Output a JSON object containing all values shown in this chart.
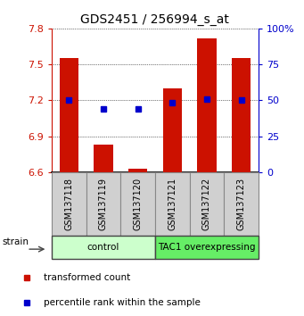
{
  "title": "GDS2451 / 256994_s_at",
  "samples": [
    "GSM137118",
    "GSM137119",
    "GSM137120",
    "GSM137121",
    "GSM137122",
    "GSM137123"
  ],
  "red_bars": [
    7.55,
    6.83,
    6.63,
    7.3,
    7.72,
    7.55
  ],
  "blue_squares": [
    7.2,
    7.13,
    7.13,
    7.18,
    7.21,
    7.2
  ],
  "ylim": [
    6.6,
    7.8
  ],
  "yticks_left": [
    6.6,
    6.9,
    7.2,
    7.5,
    7.8
  ],
  "yticks_right": [
    0,
    25,
    50,
    75,
    100
  ],
  "yticks_right_labels": [
    "0",
    "25",
    "50",
    "75",
    "100%"
  ],
  "bar_bottom": 6.6,
  "bar_color": "#cc1100",
  "square_color": "#0000cc",
  "group_labels": [
    "control",
    "TAC1 overexpressing"
  ],
  "group_ranges": [
    [
      0,
      2
    ],
    [
      3,
      5
    ]
  ],
  "group_colors_light": [
    "#ccffcc",
    "#66ee66"
  ],
  "strain_label": "strain",
  "legend1": "transformed count",
  "legend2": "percentile rank within the sample",
  "bar_color_red": "#cc1100",
  "ylabel_right_color": "#0000cc",
  "title_fontsize": 10,
  "tick_fontsize": 8,
  "sample_fontsize": 7
}
